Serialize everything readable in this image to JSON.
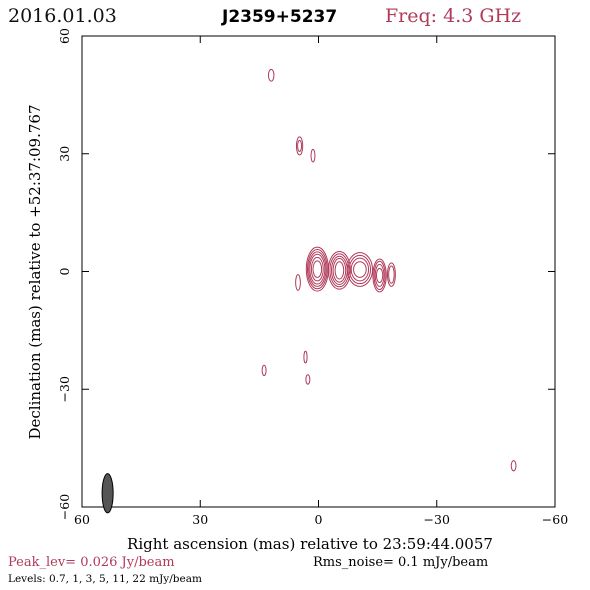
{
  "header": {
    "date": "2016.01.03",
    "source": "J2359+5237",
    "frequency": "Freq: 4.3 GHz"
  },
  "footer": {
    "peak": "Peak_lev=  0.026 Jy/beam",
    "rms": "Rms_noise=   0.1 mJy/beam",
    "levels": "Levels: 0.7,    1,    3,    5,   11,   22 mJy/beam"
  },
  "colors": {
    "contour": "#b03a5a",
    "beam": "#555555",
    "axis": "#000000"
  },
  "chart_data": {
    "type": "contour",
    "xlabel": "Right ascension (mas) relative to 23:59:44.0057",
    "ylabel": "Declination (mas) relative to +52:37:09.767",
    "xlim": [
      60,
      -60
    ],
    "ylim": [
      -60,
      60
    ],
    "xticks": [
      60,
      30,
      0,
      -30,
      -60
    ],
    "yticks": [
      -60,
      -30,
      0,
      30,
      60
    ],
    "xtick_labels": [
      "60",
      "30",
      "0",
      "−30",
      "−60"
    ],
    "ytick_labels": [
      "−60",
      "−30",
      "0",
      "30",
      "60"
    ],
    "levels_mJy": [
      0.7,
      1,
      3,
      5,
      11,
      22
    ],
    "beam": {
      "x": 53.5,
      "y": -56.5,
      "major": 5,
      "minor": 2,
      "pa": 0
    },
    "components": [
      {
        "x": 0.3,
        "y": 0.6,
        "rx": [
          2.8,
          2.5,
          2.2,
          1.9,
          1.5,
          1.1
        ],
        "ry": [
          5.6,
          5.0,
          4.4,
          3.8,
          3.0,
          2.1
        ]
      },
      {
        "x": -5.3,
        "y": 0.3,
        "rx": [
          2.8,
          2.4,
          2.0,
          1.6,
          1.1
        ],
        "ry": [
          4.8,
          4.2,
          3.6,
          3.0,
          2.2
        ]
      },
      {
        "x": -10.5,
        "y": 0.5,
        "rx": [
          3.2,
          2.7,
          2.2,
          1.6
        ],
        "ry": [
          4.3,
          3.6,
          2.9,
          2.0
        ]
      },
      {
        "x": -15.5,
        "y": -1.0,
        "rx": [
          1.7,
          1.4,
          1.1,
          0.8
        ],
        "ry": [
          4.2,
          3.6,
          2.8,
          1.8
        ]
      },
      {
        "x": -18.5,
        "y": -0.8,
        "rx": [
          1.0,
          0.7
        ],
        "ry": [
          3.0,
          2.2
        ]
      },
      {
        "x": 5.2,
        "y": -2.8,
        "rx": [
          0.6
        ],
        "ry": [
          2.0
        ]
      },
      {
        "x": 12.0,
        "y": 50.0,
        "rx": [
          0.7
        ],
        "ry": [
          1.5
        ]
      },
      {
        "x": 4.8,
        "y": 32.0,
        "rx": [
          0.8,
          0.5
        ],
        "ry": [
          2.3,
          1.4
        ]
      },
      {
        "x": 1.4,
        "y": 29.5,
        "rx": [
          0.5
        ],
        "ry": [
          1.6
        ]
      },
      {
        "x": 3.3,
        "y": -21.8,
        "rx": [
          0.4
        ],
        "ry": [
          1.5
        ]
      },
      {
        "x": 13.8,
        "y": -25.2,
        "rx": [
          0.5
        ],
        "ry": [
          1.3
        ]
      },
      {
        "x": 2.7,
        "y": -27.5,
        "rx": [
          0.5
        ],
        "ry": [
          1.2
        ]
      },
      {
        "x": -49.5,
        "y": -49.5,
        "rx": [
          0.6
        ],
        "ry": [
          1.3
        ]
      }
    ]
  }
}
